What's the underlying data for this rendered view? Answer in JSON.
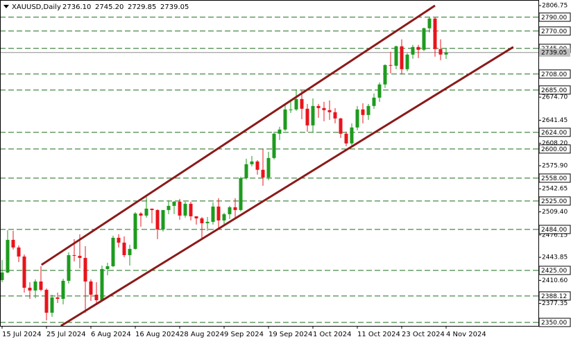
{
  "chart_data": {
    "type": "candlestick",
    "title": "XAUUSD,Daily",
    "ohlc_labels": [
      "2736.10",
      "2745.20",
      "2729.85",
      "2739.05"
    ],
    "categories": [
      "15 Jul 2024",
      null,
      null,
      null,
      null,
      null,
      null,
      null,
      "25 Jul 2024",
      null,
      null,
      null,
      null,
      null,
      null,
      null,
      "6 Aug 2024",
      null,
      null,
      null,
      null,
      null,
      null,
      null,
      "16 Aug 2024",
      null,
      null,
      null,
      null,
      null,
      null,
      null,
      "28 Aug 2024",
      null,
      null,
      null,
      null,
      null,
      null,
      null,
      "9 Sep 2024",
      null,
      null,
      null,
      null,
      null,
      null,
      null,
      "19 Sep 2024",
      null,
      null,
      null,
      null,
      null,
      null,
      null,
      "1 Oct 2024",
      null,
      null,
      null,
      null,
      null,
      null,
      null,
      "11 Oct 2024",
      null,
      null,
      null,
      null,
      null,
      null,
      null,
      "23 Oct 2024",
      null,
      null,
      null,
      null,
      null,
      null,
      null,
      "4 Nov 2024"
    ],
    "candles": [
      [
        2411,
        2440,
        2408,
        2422
      ],
      [
        2422,
        2483,
        2421,
        2469
      ],
      [
        2469,
        2482,
        2455,
        2458
      ],
      [
        2458,
        2461,
        2437,
        2445
      ],
      [
        2445,
        2448,
        2393,
        2400
      ],
      [
        2400,
        2408,
        2384,
        2396
      ],
      [
        2396,
        2412,
        2385,
        2409
      ],
      [
        2409,
        2431,
        2395,
        2397
      ],
      [
        2397,
        2399,
        2353,
        2364
      ],
      [
        2364,
        2390,
        2358,
        2386
      ],
      [
        2386,
        2393,
        2378,
        2384
      ],
      [
        2384,
        2413,
        2376,
        2410
      ],
      [
        2410,
        2451,
        2406,
        2447
      ],
      [
        2447,
        2470,
        2438,
        2446
      ],
      [
        2446,
        2477,
        2428,
        2443
      ],
      [
        2443,
        2460,
        2364,
        2409
      ],
      [
        2409,
        2412,
        2381,
        2390
      ],
      [
        2390,
        2408,
        2378,
        2382
      ],
      [
        2382,
        2432,
        2380,
        2427
      ],
      [
        2427,
        2436,
        2418,
        2431
      ],
      [
        2431,
        2475,
        2430,
        2472
      ],
      [
        2472,
        2477,
        2458,
        2465
      ],
      [
        2465,
        2474,
        2444,
        2447
      ],
      [
        2447,
        2462,
        2432,
        2456
      ],
      [
        2456,
        2509,
        2455,
        2507
      ],
      [
        2507,
        2509,
        2488,
        2504
      ],
      [
        2504,
        2531,
        2501,
        2514
      ],
      [
        2514,
        2514,
        2493,
        2512
      ],
      [
        2512,
        2513,
        2470,
        2484
      ],
      [
        2484,
        2512,
        2481,
        2512
      ],
      [
        2512,
        2526,
        2506,
        2518
      ],
      [
        2518,
        2525,
        2506,
        2524
      ],
      [
        2524,
        2528,
        2498,
        2504
      ],
      [
        2504,
        2524,
        2501,
        2521
      ],
      [
        2521,
        2524,
        2497,
        2503
      ],
      [
        2503,
        2503,
        2491,
        2500
      ],
      [
        2500,
        2502,
        2471,
        2493
      ],
      [
        2493,
        2502,
        2482,
        2495
      ],
      [
        2495,
        2523,
        2491,
        2517
      ],
      [
        2517,
        2529,
        2485,
        2497
      ],
      [
        2497,
        2508,
        2491,
        2506
      ],
      [
        2506,
        2518,
        2499,
        2516
      ],
      [
        2516,
        2529,
        2500,
        2512
      ],
      [
        2512,
        2560,
        2510,
        2558
      ],
      [
        2558,
        2586,
        2556,
        2578
      ],
      [
        2578,
        2590,
        2575,
        2582
      ],
      [
        2582,
        2584,
        2563,
        2570
      ],
      [
        2570,
        2600,
        2547,
        2559
      ],
      [
        2559,
        2596,
        2555,
        2587
      ],
      [
        2587,
        2625,
        2585,
        2622
      ],
      [
        2622,
        2632,
        2613,
        2628
      ],
      [
        2628,
        2664,
        2626,
        2657
      ],
      [
        2657,
        2670,
        2652,
        2657
      ],
      [
        2657,
        2686,
        2655,
        2672
      ],
      [
        2672,
        2685,
        2643,
        2658
      ],
      [
        2658,
        2665,
        2625,
        2634
      ],
      [
        2634,
        2673,
        2624,
        2662
      ],
      [
        2662,
        2665,
        2645,
        2659
      ],
      [
        2659,
        2668,
        2640,
        2656
      ],
      [
        2656,
        2670,
        2642,
        2653
      ],
      [
        2653,
        2659,
        2637,
        2644
      ],
      [
        2644,
        2645,
        2616,
        2622
      ],
      [
        2622,
        2625,
        2604,
        2608
      ],
      [
        2608,
        2637,
        2603,
        2631
      ],
      [
        2631,
        2662,
        2627,
        2657
      ],
      [
        2657,
        2666,
        2637,
        2649
      ],
      [
        2649,
        2665,
        2642,
        2662
      ],
      [
        2662,
        2680,
        2658,
        2674
      ],
      [
        2674,
        2696,
        2668,
        2693
      ],
      [
        2693,
        2722,
        2688,
        2721
      ],
      [
        2721,
        2740,
        2709,
        2720
      ],
      [
        2720,
        2749,
        2715,
        2748
      ],
      [
        2748,
        2758,
        2708,
        2715
      ],
      [
        2715,
        2738,
        2712,
        2736
      ],
      [
        2736,
        2750,
        2730,
        2747
      ],
      [
        2747,
        2750,
        2731,
        2743
      ],
      [
        2743,
        2775,
        2741,
        2774
      ],
      [
        2774,
        2790,
        2768,
        2788
      ],
      [
        2788,
        2790,
        2733,
        2744
      ],
      [
        2744,
        2758,
        2728,
        2736.1
      ],
      [
        2736.1,
        2745.2,
        2729.85,
        2739.05
      ]
    ],
    "up_color": "#1e9b1e",
    "down_color": "#e8141c",
    "ylim": [
      2345.0,
      2814.75
    ],
    "yticks": [
      {
        "value": 2806.75,
        "label": "2806.75"
      },
      {
        "value": 2674.7,
        "label": "2674.70"
      },
      {
        "value": 2641.45,
        "label": "2641.45"
      },
      {
        "value": 2608.2,
        "label": "2608.20"
      },
      {
        "value": 2575.9,
        "label": "2575.90"
      },
      {
        "value": 2542.65,
        "label": "2542.65"
      },
      {
        "value": 2509.4,
        "label": "2509.40"
      },
      {
        "value": 2476.15,
        "label": "2476.15"
      },
      {
        "value": 2443.85,
        "label": "2443.85"
      },
      {
        "value": 2410.6,
        "label": "2410.60"
      },
      {
        "value": 2377.35,
        "label": "2377.35"
      }
    ],
    "levels": [
      {
        "value": 2790,
        "label": "2790.00"
      },
      {
        "value": 2770,
        "label": "2770.00"
      },
      {
        "value": 2745,
        "label": "2745.00"
      },
      {
        "value": 2708,
        "label": "2708.00"
      },
      {
        "value": 2685,
        "label": "2685.00"
      },
      {
        "value": 2624,
        "label": "2624.00"
      },
      {
        "value": 2600,
        "label": "2600.00"
      },
      {
        "value": 2558,
        "label": "2558.00"
      },
      {
        "value": 2525,
        "label": "2525.00"
      },
      {
        "value": 2484,
        "label": "2484.00"
      },
      {
        "value": 2425,
        "label": "2425.00"
      },
      {
        "value": 2388.12,
        "label": "2388.12"
      },
      {
        "value": 2350,
        "label": "2350.00"
      }
    ],
    "level_color": "#1a6b1a",
    "current_price": {
      "value": 2739.05,
      "label": "2739.05"
    },
    "trendlines": [
      {
        "x": [
          7.1,
          78
        ],
        "price": [
          2433,
          2806.75
        ]
      },
      {
        "x": [
          10.6,
          92.1
        ],
        "price": [
          2345,
          2747
        ]
      }
    ],
    "trend_color": "#8b1a1a"
  }
}
